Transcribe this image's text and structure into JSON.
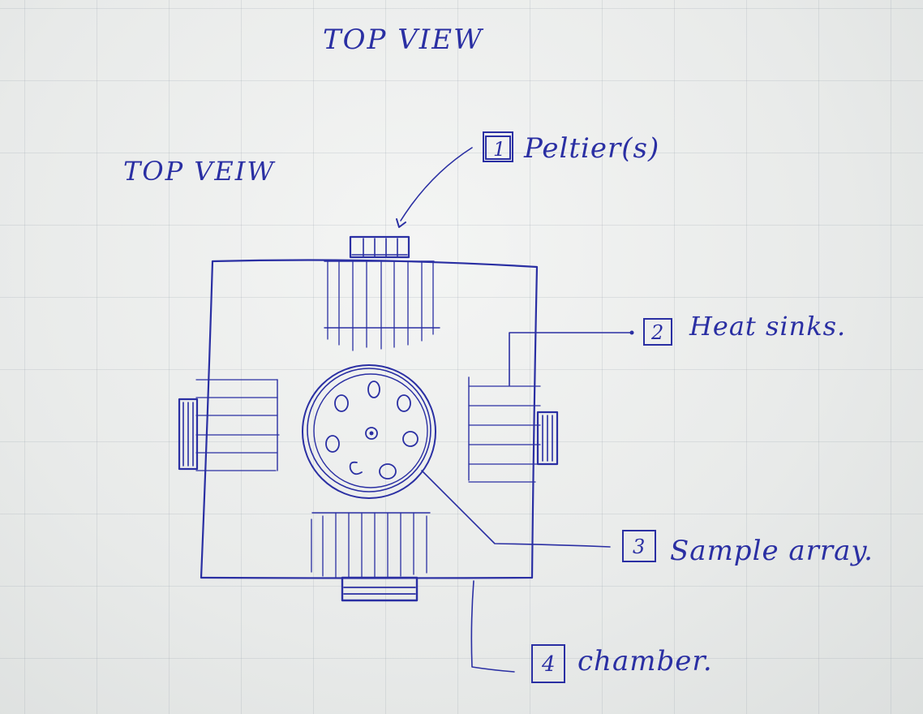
{
  "title_main": "TOP VIEW",
  "title_secondary": "TOP VEIW",
  "callouts": [
    {
      "number": "1",
      "label": "Peltier(s)"
    },
    {
      "number": "2",
      "label": "Heat sinks."
    },
    {
      "number": "3",
      "label": "Sample array."
    },
    {
      "number": "4",
      "label": "chamber."
    }
  ],
  "ink_color": "#2a2fa3"
}
